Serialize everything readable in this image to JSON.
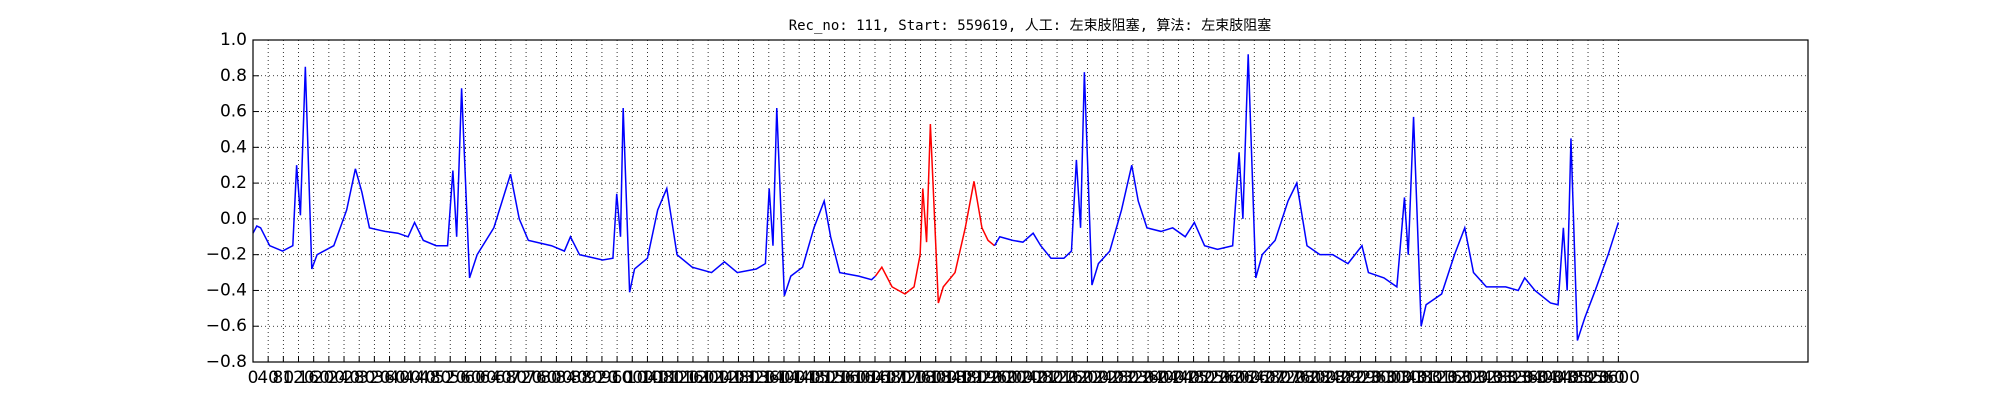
{
  "chart_data": {
    "type": "line",
    "title": "Rec_no: 111, Start: 559619, 人工: 左束肢阻塞, 算法: 左束肢阻塞",
    "xlim": [
      0,
      4100
    ],
    "xticks": [
      0,
      40,
      80,
      120,
      160,
      200,
      240,
      280,
      320,
      360,
      400,
      440,
      480,
      520,
      560,
      600,
      640,
      680,
      720,
      760,
      800,
      840,
      880,
      920,
      960,
      1000,
      1040,
      1080,
      1120,
      1160,
      1200,
      1240,
      1280,
      1320,
      1360,
      1400,
      1440,
      1480,
      1520,
      1560,
      1600,
      1640,
      1680,
      1720,
      1760,
      1800,
      1840,
      1880,
      1920,
      1960,
      2000,
      2040,
      2080,
      2120,
      2160,
      2200,
      2240,
      2280,
      2320,
      2360,
      2400,
      2440,
      2480,
      2520,
      2560,
      2600,
      2640,
      2680,
      2720,
      2760,
      2800,
      2840,
      2880,
      2920,
      2960,
      3000,
      3040,
      3080,
      3120,
      3160,
      3200,
      3240,
      3280,
      3320,
      3360,
      3400,
      3440,
      3480,
      3520,
      3560,
      3600
    ],
    "ylim": [
      -0.8,
      1.0
    ],
    "yticks": [
      {
        "value": -0.8,
        "label": "−0.8"
      },
      {
        "value": -0.6,
        "label": "−0.6"
      },
      {
        "value": -0.4,
        "label": "−0.4"
      },
      {
        "value": -0.2,
        "label": "−0.2"
      },
      {
        "value": 0,
        "label": "0.0"
      },
      0.2,
      0.4,
      0.6,
      0.8,
      {
        "value": 1,
        "label": "1.0"
      }
    ],
    "grid": true,
    "series": [
      {
        "color": "#0000ff",
        "x": [
          0,
          10,
          20,
          44,
          78,
          105,
          115,
          125,
          138,
          155,
          169,
          213,
          247,
          270,
          287,
          307,
          348,
          382,
          409,
          426,
          449,
          483,
          513,
          527,
          537,
          550,
          571,
          591,
          635,
          679,
          702,
          726,
          787,
          821,
          837,
          861,
          922,
          949,
          959,
          969,
          976,
          993,
          1006,
          1040,
          1067,
          1091,
          1118,
          1158,
          1209,
          1243,
          1277,
          1327,
          1351,
          1361,
          1371,
          1381,
          1401,
          1418,
          1449,
          1479,
          1506,
          1523,
          1547,
          1597,
          1631,
          1641
        ],
        "values": [
          -0.08,
          -0.04,
          -0.05,
          -0.15,
          -0.18,
          -0.15,
          0.3,
          0.02,
          0.85,
          -0.28,
          -0.2,
          -0.15,
          0.05,
          0.28,
          0.15,
          -0.05,
          -0.07,
          -0.08,
          -0.1,
          -0.02,
          -0.12,
          -0.15,
          -0.15,
          0.27,
          -0.1,
          0.73,
          -0.33,
          -0.2,
          -0.05,
          0.25,
          0.0,
          -0.12,
          -0.15,
          -0.18,
          -0.1,
          -0.2,
          -0.23,
          -0.22,
          0.14,
          -0.1,
          0.62,
          -0.41,
          -0.28,
          -0.22,
          0.05,
          0.17,
          -0.2,
          -0.27,
          -0.3,
          -0.24,
          -0.3,
          -0.28,
          -0.25,
          0.17,
          -0.15,
          0.62,
          -0.43,
          -0.32,
          -0.27,
          -0.05,
          0.1,
          -0.1,
          -0.3,
          -0.32,
          -0.34,
          -0.32
        ]
      },
      {
        "color": "#ff0000",
        "x": [
          1641,
          1658,
          1685,
          1719,
          1743,
          1759,
          1766,
          1776,
          1786,
          1807,
          1820,
          1851,
          1878,
          1901,
          1922,
          1938,
          1955
        ],
        "values": [
          -0.32,
          -0.27,
          -0.38,
          -0.42,
          -0.38,
          -0.2,
          0.17,
          -0.13,
          0.53,
          -0.47,
          -0.38,
          -0.3,
          -0.05,
          0.21,
          -0.05,
          -0.12,
          -0.15
        ]
      },
      {
        "color": "#0000ff",
        "x": [
          1955,
          1969,
          2003,
          2030,
          2057,
          2077,
          2104,
          2138,
          2158,
          2171,
          2182,
          2192,
          2212,
          2229,
          2259,
          2290,
          2317,
          2334,
          2357,
          2394,
          2425,
          2458,
          2482,
          2509,
          2543,
          2583,
          2600,
          2610,
          2624,
          2644,
          2661,
          2695,
          2729,
          2752,
          2779,
          2813,
          2847,
          2887,
          2924,
          2941,
          2982,
          3016,
          3036,
          3046,
          3060,
          3080,
          3093,
          3134,
          3168,
          3195,
          3218,
          3252,
          3303,
          3336,
          3353,
          3380,
          3421,
          3441,
          3455,
          3465,
          3475,
          3492,
          3512,
          3539,
          3573,
          3600
        ],
        "values": [
          -0.15,
          -0.1,
          -0.12,
          -0.13,
          -0.08,
          -0.15,
          -0.22,
          -0.22,
          -0.18,
          0.33,
          -0.05,
          0.82,
          -0.37,
          -0.25,
          -0.18,
          0.05,
          0.3,
          0.1,
          -0.05,
          -0.07,
          -0.05,
          -0.1,
          -0.02,
          -0.15,
          -0.17,
          -0.15,
          0.37,
          0.0,
          0.92,
          -0.33,
          -0.2,
          -0.12,
          0.1,
          0.2,
          -0.15,
          -0.2,
          -0.2,
          -0.25,
          -0.15,
          -0.3,
          -0.33,
          -0.38,
          0.12,
          -0.2,
          0.57,
          -0.6,
          -0.48,
          -0.42,
          -0.2,
          -0.05,
          -0.3,
          -0.38,
          -0.38,
          -0.4,
          -0.33,
          -0.4,
          -0.47,
          -0.48,
          -0.05,
          -0.4,
          0.45,
          -0.68,
          -0.55,
          -0.4,
          -0.2,
          -0.02
        ]
      }
    ]
  }
}
